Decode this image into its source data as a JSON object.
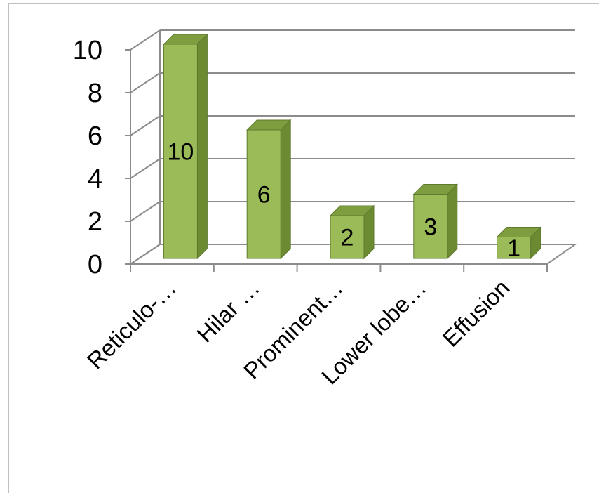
{
  "chart_data": {
    "type": "bar",
    "style": "3d-column",
    "categories": [
      "Reticulo-…",
      "Hilar …",
      "Prominent…",
      "Lower lobe…",
      "Effusion"
    ],
    "values": [
      10,
      6,
      2,
      3,
      1
    ],
    "data_labels": [
      "10",
      "6",
      "2",
      "3",
      "1"
    ],
    "y_ticks": [
      "0",
      "2",
      "4",
      "6",
      "8",
      "10"
    ],
    "ylim": [
      0,
      10
    ],
    "grid": true,
    "legend": "none",
    "colors": {
      "bar_front": "#9bbb59",
      "bar_side": "#6b8a32",
      "bar_top": "#7e9d3f",
      "bar_edge": "#5f7a2e",
      "gridline": "#8c8c8c",
      "frame": "#bfbfbf"
    }
  }
}
